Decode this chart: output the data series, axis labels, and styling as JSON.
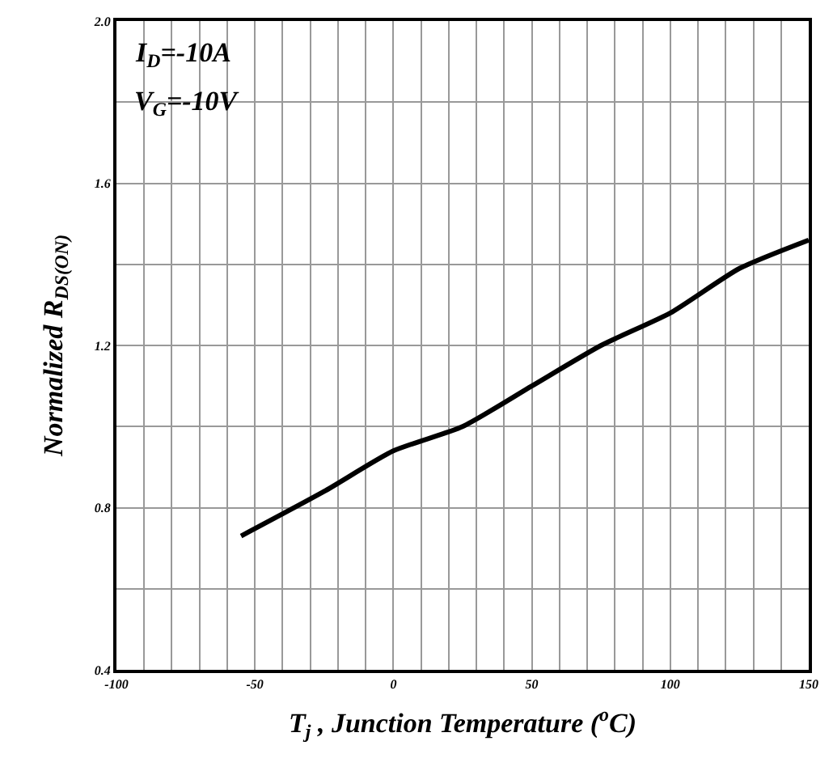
{
  "chart_data": {
    "type": "line",
    "xlabel": "T$_{j}$ , Junction Temperature ($^{o}$C)",
    "ylabel": "Normalized R$_{DS(ON)}$",
    "annotations": [
      "I$_{D}$=-10A",
      "V$_{G}$=-10V"
    ],
    "x": [
      -55,
      -25,
      0,
      25,
      50,
      75,
      100,
      125,
      150
    ],
    "series": [
      {
        "color": "#000000",
        "values": [
          0.73,
          0.84,
          0.94,
          1.0,
          1.1,
          1.2,
          1.28,
          1.39,
          1.46
        ]
      }
    ],
    "xlim": [
      -100,
      150
    ],
    "xticks": [
      -100,
      {
        "value": -90,
        "label": null
      },
      {
        "value": -80,
        "label": null
      },
      {
        "value": -70,
        "label": null
      },
      {
        "value": -60,
        "label": null
      },
      -50,
      {
        "value": -40,
        "label": null
      },
      {
        "value": -30,
        "label": null
      },
      {
        "value": -20,
        "label": null
      },
      {
        "value": -10,
        "label": null
      },
      0,
      {
        "value": 10,
        "label": null
      },
      {
        "value": 20,
        "label": null
      },
      {
        "value": 30,
        "label": null
      },
      {
        "value": 40,
        "label": null
      },
      50,
      {
        "value": 60,
        "label": null
      },
      {
        "value": 70,
        "label": null
      },
      {
        "value": 80,
        "label": null
      },
      {
        "value": 90,
        "label": null
      },
      100,
      {
        "value": 110,
        "label": null
      },
      {
        "value": 120,
        "label": null
      },
      {
        "value": 130,
        "label": null
      },
      {
        "value": 140,
        "label": null
      },
      150
    ],
    "ylim": [
      0.4,
      2.0
    ],
    "yticks": [
      0.4,
      {
        "value": 0.6,
        "label": null
      },
      0.8,
      {
        "value": 1.0,
        "label": null
      },
      1.2,
      {
        "value": 1.4,
        "label": null
      },
      1.6,
      {
        "value": 1.8,
        "label": null
      },
      {
        "value": 2.0,
        "label": "2.0"
      }
    ],
    "grid": true,
    "legend": false,
    "marker": "none",
    "line_style": "solid"
  }
}
